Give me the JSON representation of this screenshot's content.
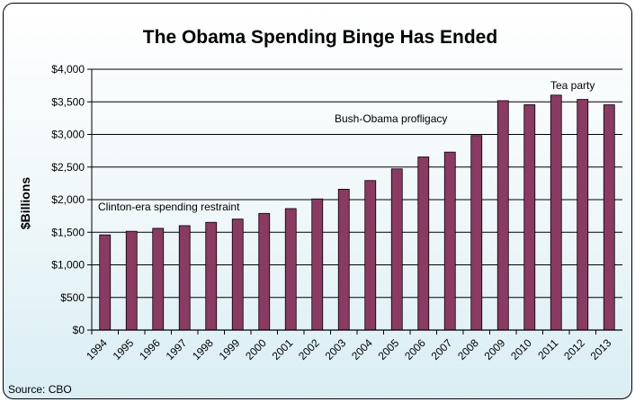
{
  "chart_data": {
    "type": "bar",
    "title": "The Obama Spending Binge Has Ended",
    "xlabel": "",
    "ylabel": "$Billions",
    "categories": [
      "1994",
      "1995",
      "1996",
      "1997",
      "1998",
      "1999",
      "2000",
      "2001",
      "2002",
      "2003",
      "2004",
      "2005",
      "2006",
      "2007",
      "2008",
      "2009",
      "2010",
      "2011",
      "2012",
      "2013"
    ],
    "values": [
      1460,
      1515,
      1560,
      1601,
      1652,
      1702,
      1789,
      1863,
      2011,
      2160,
      2293,
      2472,
      2655,
      2729,
      2983,
      3518,
      3456,
      3603,
      3537,
      3455
    ],
    "ylim": [
      0,
      4000
    ],
    "yticks": [
      "$0",
      "$500",
      "$1,000",
      "$1,500",
      "$2,000",
      "$2,500",
      "$3,000",
      "$3,500",
      "$4,000"
    ],
    "grid": true,
    "bar_color": "#8b3a62",
    "annotations": {
      "clinton": "Clinton-era spending restraint",
      "bush_obama": "Bush-Obama profligacy",
      "tea_party": "Tea party"
    },
    "source": "Source: CBO"
  }
}
